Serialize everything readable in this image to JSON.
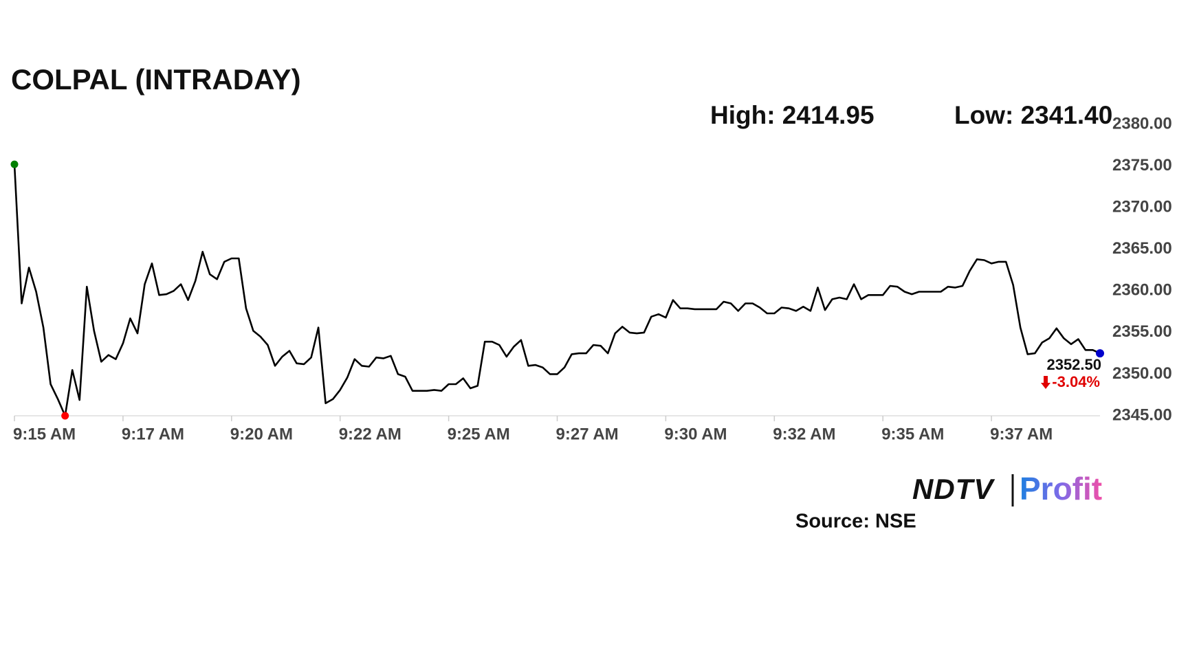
{
  "chart_data": {
    "type": "line",
    "title": "COLPAL (INTRADAY)",
    "high": "High: 2414.95",
    "low": "Low: 2341.40",
    "categories": [
      "9:15 AM",
      null,
      null,
      null,
      null,
      null,
      null,
      null,
      null,
      null,
      null,
      null,
      null,
      null,
      null,
      "9:17 AM",
      null,
      null,
      null,
      null,
      null,
      null,
      null,
      null,
      null,
      null,
      null,
      null,
      null,
      null,
      "9:20 AM",
      null,
      null,
      null,
      null,
      null,
      null,
      null,
      null,
      null,
      null,
      null,
      null,
      null,
      null,
      "9:22 AM",
      null,
      null,
      null,
      null,
      null,
      null,
      null,
      null,
      null,
      null,
      null,
      null,
      null,
      null,
      "9:25 AM",
      null,
      null,
      null,
      null,
      null,
      null,
      null,
      null,
      null,
      null,
      null,
      null,
      null,
      null,
      "9:27 AM",
      null,
      null,
      null,
      null,
      null,
      null,
      null,
      null,
      null,
      null,
      null,
      null,
      null,
      null,
      "9:30 AM",
      null,
      null,
      null,
      null,
      null,
      null,
      null,
      null,
      null,
      null,
      null,
      null,
      null,
      null,
      "9:32 AM",
      null,
      null,
      null,
      null,
      null,
      null,
      null,
      null,
      null,
      null,
      null,
      null,
      null,
      null,
      "9:35 AM",
      null,
      null,
      null,
      null,
      null,
      null,
      null,
      null,
      null,
      null,
      null,
      null,
      null,
      null,
      "9:37 AM",
      null,
      null,
      null,
      null,
      null,
      null,
      null,
      null,
      null,
      null,
      null,
      null,
      null,
      null,
      null
    ],
    "values": [
      2375.2,
      2358.5,
      2362.8,
      2359.9,
      2355.6,
      2348.8,
      2347,
      2345,
      2350.5,
      2346.9,
      2360.5,
      2355.2,
      2351.5,
      2352.3,
      2351.8,
      2353.7,
      2356.7,
      2354.9,
      2360.8,
      2363.3,
      2359.5,
      2359.6,
      2360,
      2360.8,
      2358.9,
      2361.2,
      2364.7,
      2362,
      2361.4,
      2363.5,
      2363.9,
      2363.9,
      2357.9,
      2355.2,
      2354.5,
      2353.5,
      2351,
      2352.1,
      2352.8,
      2351.3,
      2351.2,
      2352,
      2355.6,
      2346.5,
      2347,
      2348.1,
      2349.6,
      2351.8,
      2351,
      2350.9,
      2352,
      2351.9,
      2352.2,
      2350,
      2349.7,
      2348,
      2348,
      2348,
      2348.1,
      2348,
      2348.8,
      2348.8,
      2349.5,
      2348.3,
      2348.6,
      2353.9,
      2353.9,
      2353.5,
      2352.1,
      2353.3,
      2354.1,
      2351,
      2351.1,
      2350.8,
      2350,
      2350,
      2350.8,
      2352.4,
      2352.5,
      2352.5,
      2353.5,
      2353.4,
      2352.5,
      2354.9,
      2355.7,
      2355,
      2354.9,
      2355,
      2356.9,
      2357.2,
      2356.8,
      2358.9,
      2357.9,
      2357.9,
      2357.8,
      2357.8,
      2357.8,
      2357.8,
      2358.7,
      2358.5,
      2357.6,
      2358.5,
      2358.5,
      2358,
      2357.3,
      2357.3,
      2358,
      2357.9,
      2357.6,
      2358.1,
      2357.6,
      2360.4,
      2357.7,
      2359,
      2359.2,
      2359,
      2360.8,
      2359,
      2359.5,
      2359.5,
      2359.5,
      2360.6,
      2360.5,
      2359.9,
      2359.6,
      2359.9,
      2359.9,
      2359.9,
      2359.9,
      2360.5,
      2360.4,
      2360.6,
      2362.4,
      2363.8,
      2363.7,
      2363.3,
      2363.5,
      2363.5,
      2360.7,
      2355.6,
      2352.4,
      2352.5,
      2353.8,
      2354.3,
      2355.5,
      2354.3,
      2353.6,
      2354.2,
      2352.9,
      2352.9,
      2352.5
    ],
    "value_labels": [
      null,
      null,
      null,
      null,
      null,
      null,
      null,
      null,
      null,
      null,
      null,
      null,
      null,
      null,
      null,
      null,
      null,
      null,
      null,
      null,
      null,
      null,
      null,
      null,
      null,
      null,
      null,
      null,
      null,
      null,
      null,
      null,
      null,
      null,
      null,
      null,
      null,
      null,
      null,
      null,
      null,
      null,
      null,
      null,
      null,
      null,
      null,
      null,
      null,
      null,
      null,
      null,
      null,
      null,
      null,
      null,
      null,
      null,
      null,
      null,
      null,
      null,
      null,
      null,
      null,
      null,
      null,
      null,
      null,
      null,
      null,
      null,
      null,
      null,
      null,
      null,
      null,
      null,
      null,
      null,
      null,
      null,
      null,
      null,
      null,
      null,
      null,
      null,
      null,
      null,
      null,
      null,
      null,
      null,
      null,
      null,
      null,
      null,
      null,
      null,
      null,
      null,
      null,
      null,
      null,
      null,
      null,
      null,
      null,
      null,
      null,
      null,
      null,
      null,
      null,
      null,
      null,
      null,
      null,
      null,
      null,
      null,
      null,
      null,
      null,
      null,
      null,
      null,
      null,
      null,
      null,
      null,
      null,
      null,
      null,
      null,
      null,
      null,
      null,
      null,
      null,
      null,
      null,
      null,
      null,
      null,
      null,
      null,
      null,
      null,
      "2352.50"
    ],
    "change": "-3.04%",
    "color": "#000000",
    "start_color": "#008000",
    "low_color": "#ff0000",
    "end_color": "#0000cc",
    "change_color": "#e00000",
    "ylim": [
      2345,
      2380
    ],
    "yticks": [
      {
        "value": 2345,
        "label": "2345.00"
      },
      {
        "value": 2350,
        "label": "2350.00"
      },
      {
        "value": 2355,
        "label": "2355.00"
      },
      {
        "value": 2360,
        "label": "2360.00"
      },
      {
        "value": 2365,
        "label": "2365.00"
      },
      {
        "value": 2370,
        "label": "2370.00"
      },
      {
        "value": 2375,
        "label": "2375.00"
      },
      {
        "value": 2380,
        "label": "2380.00"
      }
    ],
    "logo_left": "NDTV",
    "logo_right": "Profit",
    "source": "Source: NSE"
  }
}
